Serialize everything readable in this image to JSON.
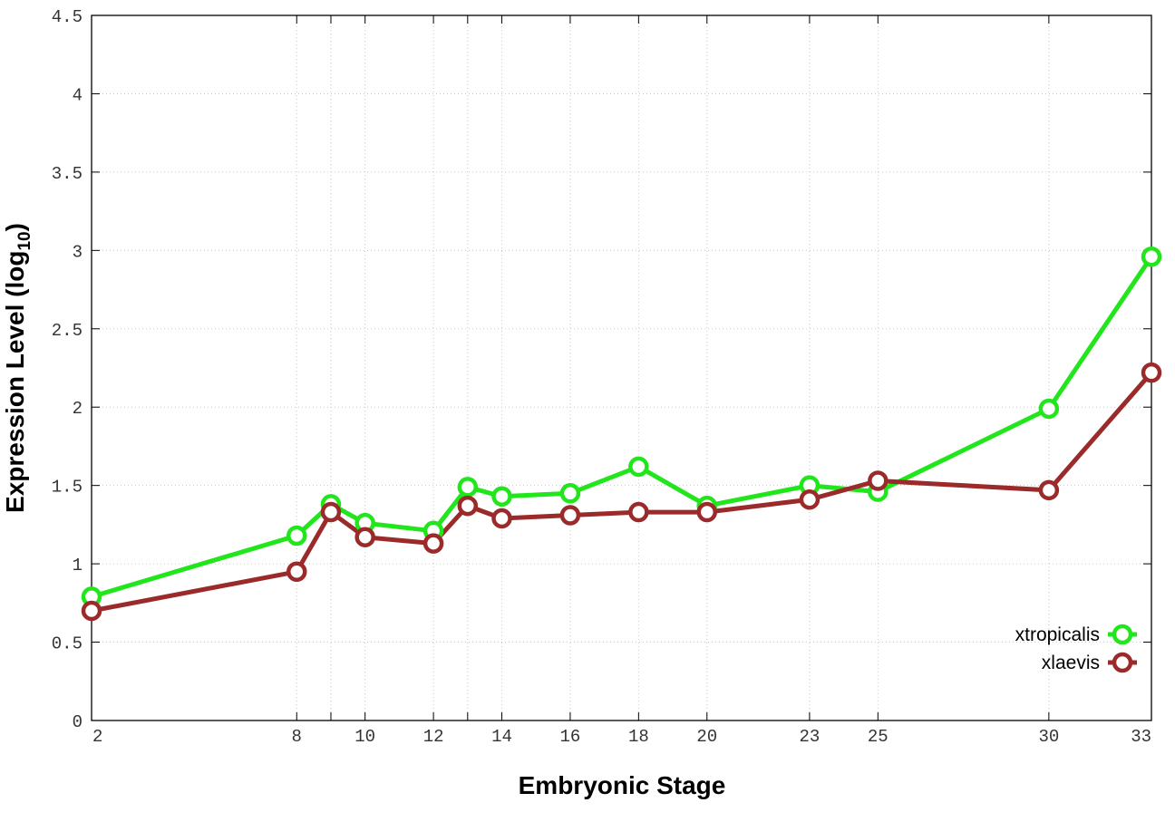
{
  "chart_data": {
    "type": "line",
    "xlabel": "Embryonic Stage",
    "ylabel_main": "Expression Level (log",
    "ylabel_sub": "10",
    "ylabel_close": ")",
    "x_ticks": [
      2,
      8,
      9,
      10,
      12,
      13,
      14,
      16,
      18,
      20,
      23,
      25,
      30,
      33
    ],
    "x_tick_labels": [
      "2",
      "8",
      "",
      "10",
      "12",
      "",
      "14",
      "16",
      "18",
      "20",
      "23",
      "25",
      "30",
      "33"
    ],
    "y_ticks": [
      0,
      0.5,
      1,
      1.5,
      2,
      2.5,
      3,
      3.5,
      4,
      4.5
    ],
    "y_tick_labels": [
      "0",
      "0.5",
      "1",
      "1.5",
      "2",
      "2.5",
      "3",
      "3.5",
      "4",
      "4.5"
    ],
    "ylim": [
      0,
      4.5
    ],
    "grid": true,
    "legend_position": "bottom-right",
    "series": [
      {
        "name": "xtropicalis",
        "color": "#22e61c",
        "values": [
          0.79,
          1.18,
          1.38,
          1.26,
          1.21,
          1.49,
          1.43,
          1.45,
          1.62,
          1.37,
          1.5,
          1.46,
          1.99,
          2.96
        ]
      },
      {
        "name": "xlaevis",
        "color": "#9b2a2a",
        "values": [
          0.7,
          0.95,
          1.33,
          1.17,
          1.13,
          1.37,
          1.29,
          1.31,
          1.33,
          1.33,
          1.41,
          1.53,
          1.47,
          2.22
        ]
      }
    ]
  }
}
